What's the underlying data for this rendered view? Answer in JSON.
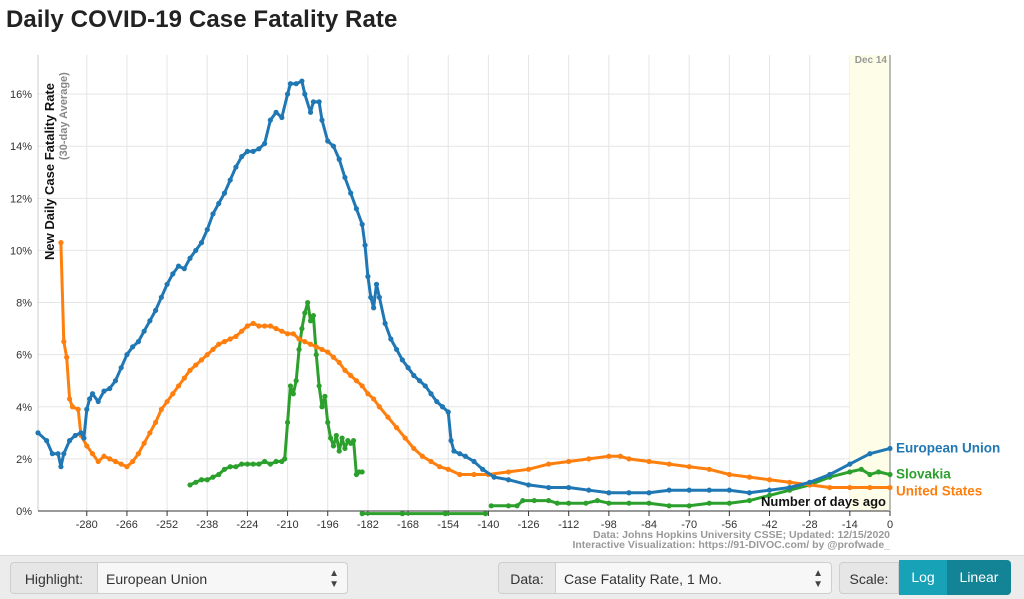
{
  "page": {
    "title": "Daily COVID-19 Case Fatality Rate"
  },
  "colors": {
    "eu": "#1f77b4",
    "us": "#ff7f0e",
    "sk": "#2ca02c",
    "grid": "#e5e5e5",
    "axis": "#333333",
    "today_band": "#fdfde8"
  },
  "chart_data": {
    "type": "line",
    "title": "Daily COVID-19 Case Fatality Rate",
    "xlabel": "Number of days ago",
    "ylabel": "New Daily Case Fatality Rate",
    "ylabel_sub": "(30-day Average)",
    "xlim": [
      -297,
      0
    ],
    "ylim": [
      0,
      0.175
    ],
    "x_ticks": [
      -280,
      -266,
      -252,
      -238,
      -224,
      -210,
      -196,
      -182,
      -168,
      -154,
      -140,
      -126,
      -112,
      -98,
      -84,
      -70,
      -56,
      -42,
      -28,
      -14,
      0
    ],
    "y_ticks": [
      0,
      0.02,
      0.04,
      0.06,
      0.08,
      0.1,
      0.12,
      0.14,
      0.16
    ],
    "y_tick_labels": [
      "0%",
      "2%",
      "4%",
      "6%",
      "8%",
      "10%",
      "12%",
      "14%",
      "16%"
    ],
    "date_marker": {
      "x": 0,
      "label": "Dec 14"
    },
    "source_line1": "Data: Johns Hopkins University CSSE; Updated: 12/15/2020",
    "source_line2": "Interactive Visualization: https://91-DIVOC.com/ by @profwade_",
    "series": [
      {
        "name": "European Union",
        "color": "#1f77b4",
        "highlight": true,
        "points": [
          [
            -297,
            0.03
          ],
          [
            -294,
            0.027
          ],
          [
            -292,
            0.022
          ],
          [
            -290,
            0.022
          ],
          [
            -289,
            0.017
          ],
          [
            -288,
            0.022
          ],
          [
            -286,
            0.027
          ],
          [
            -284,
            0.029
          ],
          [
            -282,
            0.03
          ],
          [
            -281,
            0.028
          ],
          [
            -280,
            0.039
          ],
          [
            -279,
            0.043
          ],
          [
            -278,
            0.045
          ],
          [
            -276,
            0.042
          ],
          [
            -274,
            0.046
          ],
          [
            -272,
            0.047
          ],
          [
            -270,
            0.05
          ],
          [
            -268,
            0.055
          ],
          [
            -266,
            0.06
          ],
          [
            -264,
            0.063
          ],
          [
            -262,
            0.065
          ],
          [
            -260,
            0.069
          ],
          [
            -258,
            0.073
          ],
          [
            -256,
            0.077
          ],
          [
            -254,
            0.082
          ],
          [
            -252,
            0.087
          ],
          [
            -250,
            0.091
          ],
          [
            -248,
            0.094
          ],
          [
            -246,
            0.093
          ],
          [
            -244,
            0.097
          ],
          [
            -242,
            0.1
          ],
          [
            -240,
            0.103
          ],
          [
            -238,
            0.108
          ],
          [
            -236,
            0.114
          ],
          [
            -234,
            0.118
          ],
          [
            -232,
            0.122
          ],
          [
            -230,
            0.127
          ],
          [
            -228,
            0.132
          ],
          [
            -226,
            0.136
          ],
          [
            -224,
            0.138
          ],
          [
            -222,
            0.138
          ],
          [
            -220,
            0.139
          ],
          [
            -218,
            0.141
          ],
          [
            -216,
            0.15
          ],
          [
            -214,
            0.153
          ],
          [
            -212,
            0.151
          ],
          [
            -210,
            0.16
          ],
          [
            -209,
            0.164
          ],
          [
            -207,
            0.164
          ],
          [
            -205,
            0.165
          ],
          [
            -204,
            0.16
          ],
          [
            -202,
            0.153
          ],
          [
            -201,
            0.157
          ],
          [
            -199,
            0.157
          ],
          [
            -198,
            0.15
          ],
          [
            -196,
            0.142
          ],
          [
            -194,
            0.14
          ],
          [
            -192,
            0.135
          ],
          [
            -190,
            0.128
          ],
          [
            -188,
            0.122
          ],
          [
            -186,
            0.116
          ],
          [
            -184,
            0.11
          ],
          [
            -183,
            0.102
          ],
          [
            -182,
            0.09
          ],
          [
            -181,
            0.082
          ],
          [
            -180,
            0.078
          ],
          [
            -179,
            0.087
          ],
          [
            -178,
            0.082
          ],
          [
            -176,
            0.072
          ],
          [
            -174,
            0.066
          ],
          [
            -172,
            0.062
          ],
          [
            -170,
            0.058
          ],
          [
            -168,
            0.055
          ],
          [
            -166,
            0.052
          ],
          [
            -164,
            0.05
          ],
          [
            -162,
            0.048
          ],
          [
            -160,
            0.045
          ],
          [
            -158,
            0.042
          ],
          [
            -156,
            0.04
          ],
          [
            -154,
            0.038
          ],
          [
            -153,
            0.027
          ],
          [
            -152,
            0.023
          ],
          [
            -150,
            0.022
          ],
          [
            -148,
            0.021
          ],
          [
            -145,
            0.019
          ],
          [
            -142,
            0.016
          ],
          [
            -138,
            0.013
          ],
          [
            -133,
            0.012
          ],
          [
            -126,
            0.01
          ],
          [
            -119,
            0.009
          ],
          [
            -112,
            0.009
          ],
          [
            -105,
            0.008
          ],
          [
            -98,
            0.007
          ],
          [
            -91,
            0.007
          ],
          [
            -84,
            0.007
          ],
          [
            -77,
            0.008
          ],
          [
            -70,
            0.008
          ],
          [
            -63,
            0.008
          ],
          [
            -56,
            0.008
          ],
          [
            -49,
            0.007
          ],
          [
            -42,
            0.008
          ],
          [
            -35,
            0.009
          ],
          [
            -28,
            0.011
          ],
          [
            -21,
            0.014
          ],
          [
            -14,
            0.018
          ],
          [
            -7,
            0.022
          ],
          [
            0,
            0.024
          ]
        ]
      },
      {
        "name": "Slovakia",
        "color": "#2ca02c",
        "highlight": false,
        "segments": [
          [
            [
              -244,
              0.01
            ],
            [
              -242,
              0.011
            ],
            [
              -240,
              0.012
            ],
            [
              -238,
              0.012
            ],
            [
              -236,
              0.013
            ],
            [
              -234,
              0.014
            ],
            [
              -232,
              0.016
            ],
            [
              -230,
              0.017
            ],
            [
              -228,
              0.017
            ],
            [
              -226,
              0.018
            ],
            [
              -224,
              0.018
            ],
            [
              -222,
              0.018
            ],
            [
              -220,
              0.018
            ],
            [
              -218,
              0.019
            ],
            [
              -216,
              0.018
            ],
            [
              -214,
              0.019
            ],
            [
              -212,
              0.019
            ],
            [
              -211,
              0.02
            ],
            [
              -210,
              0.034
            ],
            [
              -209,
              0.048
            ],
            [
              -208,
              0.045
            ],
            [
              -207,
              0.05
            ],
            [
              -206,
              0.062
            ],
            [
              -205,
              0.07
            ],
            [
              -204,
              0.076
            ],
            [
              -203,
              0.08
            ],
            [
              -202,
              0.073
            ],
            [
              -201,
              0.075
            ],
            [
              -200,
              0.06
            ],
            [
              -199,
              0.048
            ],
            [
              -198,
              0.04
            ],
            [
              -197,
              0.044
            ],
            [
              -196,
              0.034
            ],
            [
              -195,
              0.028
            ],
            [
              -194,
              0.025
            ],
            [
              -193,
              0.029
            ],
            [
              -192,
              0.023
            ],
            [
              -191,
              0.028
            ],
            [
              -190,
              0.024
            ],
            [
              -189,
              0.027
            ],
            [
              -188,
              0.026
            ],
            [
              -187,
              0.027
            ],
            [
              -186,
              0.014
            ],
            [
              -185,
              0.015
            ],
            [
              -184,
              0.015
            ]
          ],
          [
            [
              -184,
              -0.001
            ],
            [
              -170,
              -0.001
            ],
            [
              -155,
              -0.001
            ],
            [
              -141,
              -0.001
            ]
          ],
          [
            [
              -139,
              0.002
            ],
            [
              -133,
              0.002
            ],
            [
              -130,
              0.002
            ],
            [
              -128,
              0.004
            ],
            [
              -124,
              0.004
            ],
            [
              -119,
              0.004
            ],
            [
              -116,
              0.003
            ],
            [
              -112,
              0.003
            ],
            [
              -106,
              0.003
            ],
            [
              -102,
              0.004
            ],
            [
              -98,
              0.003
            ],
            [
              -91,
              0.003
            ],
            [
              -84,
              0.003
            ],
            [
              -77,
              0.002
            ],
            [
              -70,
              0.002
            ],
            [
              -63,
              0.003
            ],
            [
              -56,
              0.003
            ],
            [
              -49,
              0.004
            ],
            [
              -42,
              0.006
            ],
            [
              -35,
              0.008
            ],
            [
              -28,
              0.01
            ],
            [
              -21,
              0.013
            ],
            [
              -14,
              0.015
            ],
            [
              -10,
              0.016
            ],
            [
              -7,
              0.014
            ],
            [
              -4,
              0.015
            ],
            [
              0,
              0.014
            ]
          ]
        ]
      },
      {
        "name": "United States",
        "color": "#ff7f0e",
        "highlight": false,
        "points": [
          [
            -289,
            0.103
          ],
          [
            -288,
            0.065
          ],
          [
            -287,
            0.059
          ],
          [
            -286,
            0.043
          ],
          [
            -285,
            0.04
          ],
          [
            -283,
            0.039
          ],
          [
            -282,
            0.029
          ],
          [
            -280,
            0.025
          ],
          [
            -278,
            0.022
          ],
          [
            -276,
            0.019
          ],
          [
            -274,
            0.021
          ],
          [
            -272,
            0.02
          ],
          [
            -270,
            0.019
          ],
          [
            -268,
            0.018
          ],
          [
            -266,
            0.017
          ],
          [
            -264,
            0.019
          ],
          [
            -262,
            0.022
          ],
          [
            -260,
            0.026
          ],
          [
            -258,
            0.03
          ],
          [
            -256,
            0.034
          ],
          [
            -254,
            0.039
          ],
          [
            -252,
            0.042
          ],
          [
            -250,
            0.045
          ],
          [
            -248,
            0.048
          ],
          [
            -246,
            0.051
          ],
          [
            -244,
            0.054
          ],
          [
            -242,
            0.056
          ],
          [
            -240,
            0.058
          ],
          [
            -238,
            0.06
          ],
          [
            -236,
            0.062
          ],
          [
            -234,
            0.064
          ],
          [
            -232,
            0.065
          ],
          [
            -230,
            0.066
          ],
          [
            -228,
            0.067
          ],
          [
            -226,
            0.069
          ],
          [
            -224,
            0.071
          ],
          [
            -222,
            0.072
          ],
          [
            -220,
            0.071
          ],
          [
            -218,
            0.071
          ],
          [
            -216,
            0.071
          ],
          [
            -214,
            0.07
          ],
          [
            -212,
            0.069
          ],
          [
            -210,
            0.068
          ],
          [
            -208,
            0.068
          ],
          [
            -206,
            0.066
          ],
          [
            -204,
            0.065
          ],
          [
            -202,
            0.064
          ],
          [
            -200,
            0.063
          ],
          [
            -198,
            0.062
          ],
          [
            -196,
            0.061
          ],
          [
            -194,
            0.059
          ],
          [
            -192,
            0.057
          ],
          [
            -190,
            0.054
          ],
          [
            -188,
            0.052
          ],
          [
            -186,
            0.05
          ],
          [
            -184,
            0.048
          ],
          [
            -182,
            0.045
          ],
          [
            -180,
            0.043
          ],
          [
            -178,
            0.04
          ],
          [
            -175,
            0.036
          ],
          [
            -172,
            0.032
          ],
          [
            -169,
            0.028
          ],
          [
            -166,
            0.024
          ],
          [
            -163,
            0.021
          ],
          [
            -160,
            0.019
          ],
          [
            -157,
            0.017
          ],
          [
            -154,
            0.016
          ],
          [
            -150,
            0.014
          ],
          [
            -145,
            0.014
          ],
          [
            -140,
            0.014
          ],
          [
            -133,
            0.015
          ],
          [
            -126,
            0.016
          ],
          [
            -119,
            0.018
          ],
          [
            -112,
            0.019
          ],
          [
            -105,
            0.02
          ],
          [
            -98,
            0.021
          ],
          [
            -94,
            0.021
          ],
          [
            -91,
            0.02
          ],
          [
            -84,
            0.019
          ],
          [
            -77,
            0.018
          ],
          [
            -70,
            0.017
          ],
          [
            -63,
            0.016
          ],
          [
            -56,
            0.014
          ],
          [
            -49,
            0.013
          ],
          [
            -42,
            0.012
          ],
          [
            -35,
            0.011
          ],
          [
            -28,
            0.01
          ],
          [
            -21,
            0.009
          ],
          [
            -14,
            0.009
          ],
          [
            -7,
            0.009
          ],
          [
            0,
            0.009
          ]
        ]
      }
    ]
  },
  "controls": {
    "highlight_label": "Highlight:",
    "highlight_value": "European Union",
    "data_label": "Data:",
    "data_value": "Case Fatality Rate, 1 Mo.",
    "scale_label": "Scale:",
    "scale_log": "Log",
    "scale_linear": "Linear",
    "active_scale": "Linear"
  }
}
